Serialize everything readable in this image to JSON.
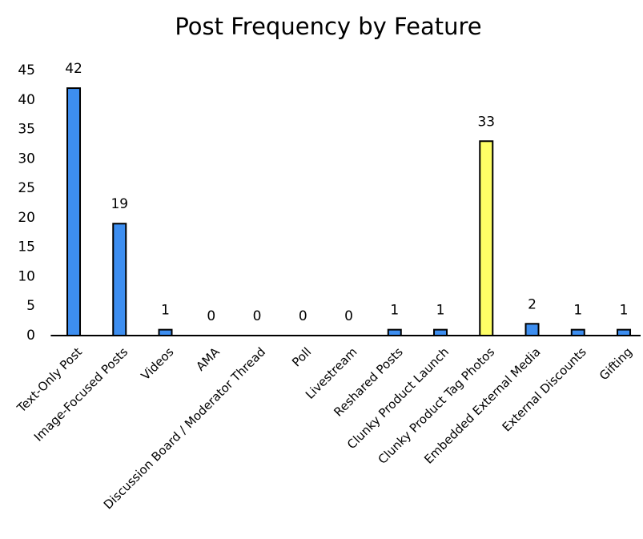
{
  "chart_data": {
    "type": "bar",
    "title": "Post Frequency by Feature",
    "categories": [
      "Text-Only Post",
      "Image-Focused Posts",
      "Videos",
      "AMA",
      "Discussion Board / Moderator Thread",
      "Poll",
      "Livestream",
      "Reshared Posts",
      "Clunky Product Launch",
      "Clunky Product Tag Photos",
      "Embedded External Media",
      "External Discounts",
      "Gifting"
    ],
    "values": [
      42,
      19,
      1,
      0,
      0,
      0,
      0,
      1,
      1,
      33,
      2,
      1,
      1
    ],
    "colors": [
      "#3d8ef0",
      "#3d8ef0",
      "#3d8ef0",
      "#3d8ef0",
      "#3d8ef0",
      "#3d8ef0",
      "#3d8ef0",
      "#3d8ef0",
      "#3d8ef0",
      "#ffff66",
      "#3d8ef0",
      "#3d8ef0",
      "#3d8ef0"
    ],
    "ylim": [
      0,
      45
    ],
    "yticks": [
      0,
      5,
      10,
      15,
      20,
      25,
      30,
      35,
      40,
      45
    ],
    "grid": false
  }
}
